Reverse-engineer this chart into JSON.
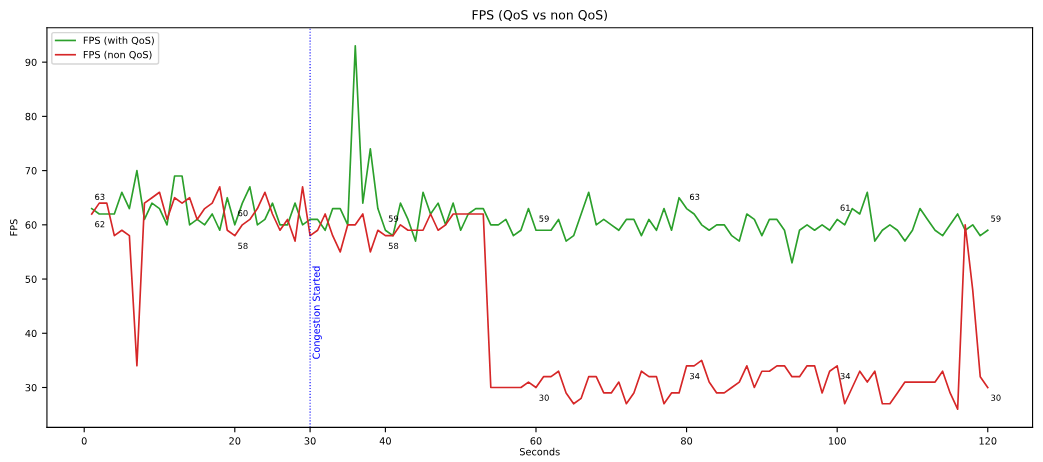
{
  "chart_data": {
    "type": "line",
    "title": "FPS (QoS vs non QoS)",
    "xlabel": "Seconds",
    "ylabel": "FPS",
    "x": [
      1,
      2,
      3,
      4,
      5,
      6,
      7,
      8,
      9,
      10,
      11,
      12,
      13,
      14,
      15,
      16,
      17,
      18,
      19,
      20,
      21,
      22,
      23,
      24,
      25,
      26,
      27,
      28,
      29,
      30,
      31,
      32,
      33,
      34,
      35,
      36,
      37,
      38,
      39,
      40,
      41,
      42,
      43,
      44,
      45,
      46,
      47,
      48,
      49,
      50,
      51,
      52,
      53,
      54,
      55,
      56,
      57,
      58,
      59,
      60,
      61,
      62,
      63,
      64,
      65,
      66,
      67,
      68,
      69,
      70,
      71,
      72,
      73,
      74,
      75,
      76,
      77,
      78,
      79,
      80,
      81,
      82,
      83,
      84,
      85,
      86,
      87,
      88,
      89,
      90,
      91,
      92,
      93,
      94,
      95,
      96,
      97,
      98,
      99,
      100,
      101,
      102,
      103,
      104,
      105,
      106,
      107,
      108,
      109,
      110,
      111,
      112,
      113,
      114,
      115,
      116,
      117,
      118,
      119,
      120
    ],
    "series": [
      {
        "name": "FPS (with QoS)",
        "color": "#2ca02c",
        "values": [
          63,
          62,
          62,
          62,
          66,
          63,
          70,
          61,
          64,
          63,
          60,
          69,
          69,
          60,
          61,
          60,
          62,
          59,
          65,
          60,
          64,
          67,
          60,
          61,
          64,
          60,
          60,
          64,
          60,
          61,
          61,
          59,
          63,
          63,
          60,
          93,
          64,
          74,
          63,
          59,
          58,
          64,
          61,
          57,
          66,
          62,
          64,
          60,
          64,
          59,
          62,
          63,
          63,
          60,
          60,
          61,
          58,
          59,
          63,
          59,
          59,
          59,
          61,
          57,
          58,
          62,
          66,
          60,
          61,
          60,
          59,
          61,
          61,
          58,
          61,
          59,
          63,
          59,
          65,
          63,
          62,
          60,
          59,
          60,
          60,
          58,
          57,
          62,
          61,
          58,
          61,
          61,
          59,
          53,
          59,
          60,
          59,
          60,
          59,
          61,
          60,
          63,
          62,
          66,
          57,
          59,
          60,
          59,
          57,
          59,
          63,
          61,
          59,
          58,
          60,
          62,
          59,
          60,
          58,
          59
        ],
        "value_labels": [
          "63",
          null,
          null,
          null,
          null,
          null,
          null,
          null,
          null,
          null,
          null,
          null,
          null,
          null,
          null,
          null,
          null,
          null,
          null,
          "60",
          null,
          null,
          null,
          null,
          null,
          null,
          null,
          null,
          null,
          null,
          null,
          null,
          null,
          null,
          null,
          null,
          null,
          null,
          null,
          "59",
          null,
          null,
          null,
          null,
          null,
          null,
          null,
          null,
          null,
          null,
          null,
          null,
          null,
          null,
          null,
          null,
          null,
          null,
          null,
          "59",
          null,
          null,
          null,
          null,
          null,
          null,
          null,
          null,
          null,
          null,
          null,
          null,
          null,
          null,
          null,
          null,
          null,
          null,
          null,
          "63",
          null,
          null,
          null,
          null,
          null,
          null,
          null,
          null,
          null,
          null,
          null,
          null,
          null,
          null,
          null,
          null,
          null,
          null,
          null,
          "61",
          null,
          null,
          null,
          null,
          null,
          null,
          null,
          null,
          null,
          null,
          null,
          null,
          null,
          null,
          null,
          null,
          null,
          null,
          null,
          "59"
        ]
      },
      {
        "name": "FPS (non QoS)",
        "color": "#d62728",
        "values": [
          62,
          64,
          64,
          58,
          59,
          58,
          34,
          64,
          65,
          66,
          61,
          65,
          64,
          65,
          61,
          63,
          64,
          67,
          59,
          58,
          60,
          61,
          63,
          66,
          62,
          59,
          61,
          57,
          67,
          58,
          59,
          62,
          58,
          55,
          60,
          60,
          62,
          55,
          59,
          58,
          58,
          60,
          59,
          59,
          59,
          62,
          59,
          60,
          62,
          62,
          62,
          62,
          62,
          30,
          30,
          30,
          30,
          30,
          31,
          30,
          32,
          32,
          33,
          29,
          27,
          28,
          32,
          32,
          29,
          29,
          31,
          27,
          29,
          33,
          32,
          32,
          27,
          29,
          29,
          34,
          34,
          35,
          31,
          29,
          29,
          30,
          31,
          34,
          30,
          33,
          33,
          34,
          34,
          32,
          32,
          34,
          34,
          29,
          33,
          34,
          27,
          30,
          33,
          31,
          33,
          27,
          27,
          29,
          31,
          31,
          31,
          31,
          31,
          33,
          29,
          26,
          60,
          48,
          32,
          30
        ],
        "value_labels": [
          "62",
          null,
          null,
          null,
          null,
          null,
          null,
          null,
          null,
          null,
          null,
          null,
          null,
          null,
          null,
          null,
          null,
          null,
          null,
          "58",
          null,
          null,
          null,
          null,
          null,
          null,
          null,
          null,
          null,
          null,
          null,
          null,
          null,
          null,
          null,
          null,
          null,
          null,
          null,
          "58",
          null,
          null,
          null,
          null,
          null,
          null,
          null,
          null,
          null,
          null,
          null,
          null,
          null,
          null,
          null,
          null,
          null,
          null,
          null,
          "30",
          null,
          null,
          null,
          null,
          null,
          null,
          null,
          null,
          null,
          null,
          null,
          null,
          null,
          null,
          null,
          null,
          null,
          null,
          null,
          "34",
          null,
          null,
          null,
          null,
          null,
          null,
          null,
          null,
          null,
          null,
          null,
          null,
          null,
          null,
          null,
          null,
          null,
          null,
          null,
          "34",
          null,
          null,
          null,
          null,
          null,
          null,
          null,
          null,
          null,
          null,
          null,
          null,
          null,
          null,
          null,
          null,
          null,
          null,
          null,
          "30"
        ]
      }
    ],
    "xlim": [
      -4.95,
      125.95
    ],
    "ylim": [
      22.65,
      96.35
    ],
    "xticks": [
      0,
      20,
      30,
      40,
      60,
      80,
      100,
      120
    ],
    "yticks": [
      30,
      40,
      50,
      60,
      70,
      80,
      90
    ],
    "ref_lines": [
      {
        "axis": "x",
        "value": 30,
        "label": "Congestion Started",
        "color": "#0000ff",
        "line_style": "dotted"
      }
    ],
    "legend": "top left",
    "grid": false,
    "marker": "none",
    "line_style": "solid"
  }
}
